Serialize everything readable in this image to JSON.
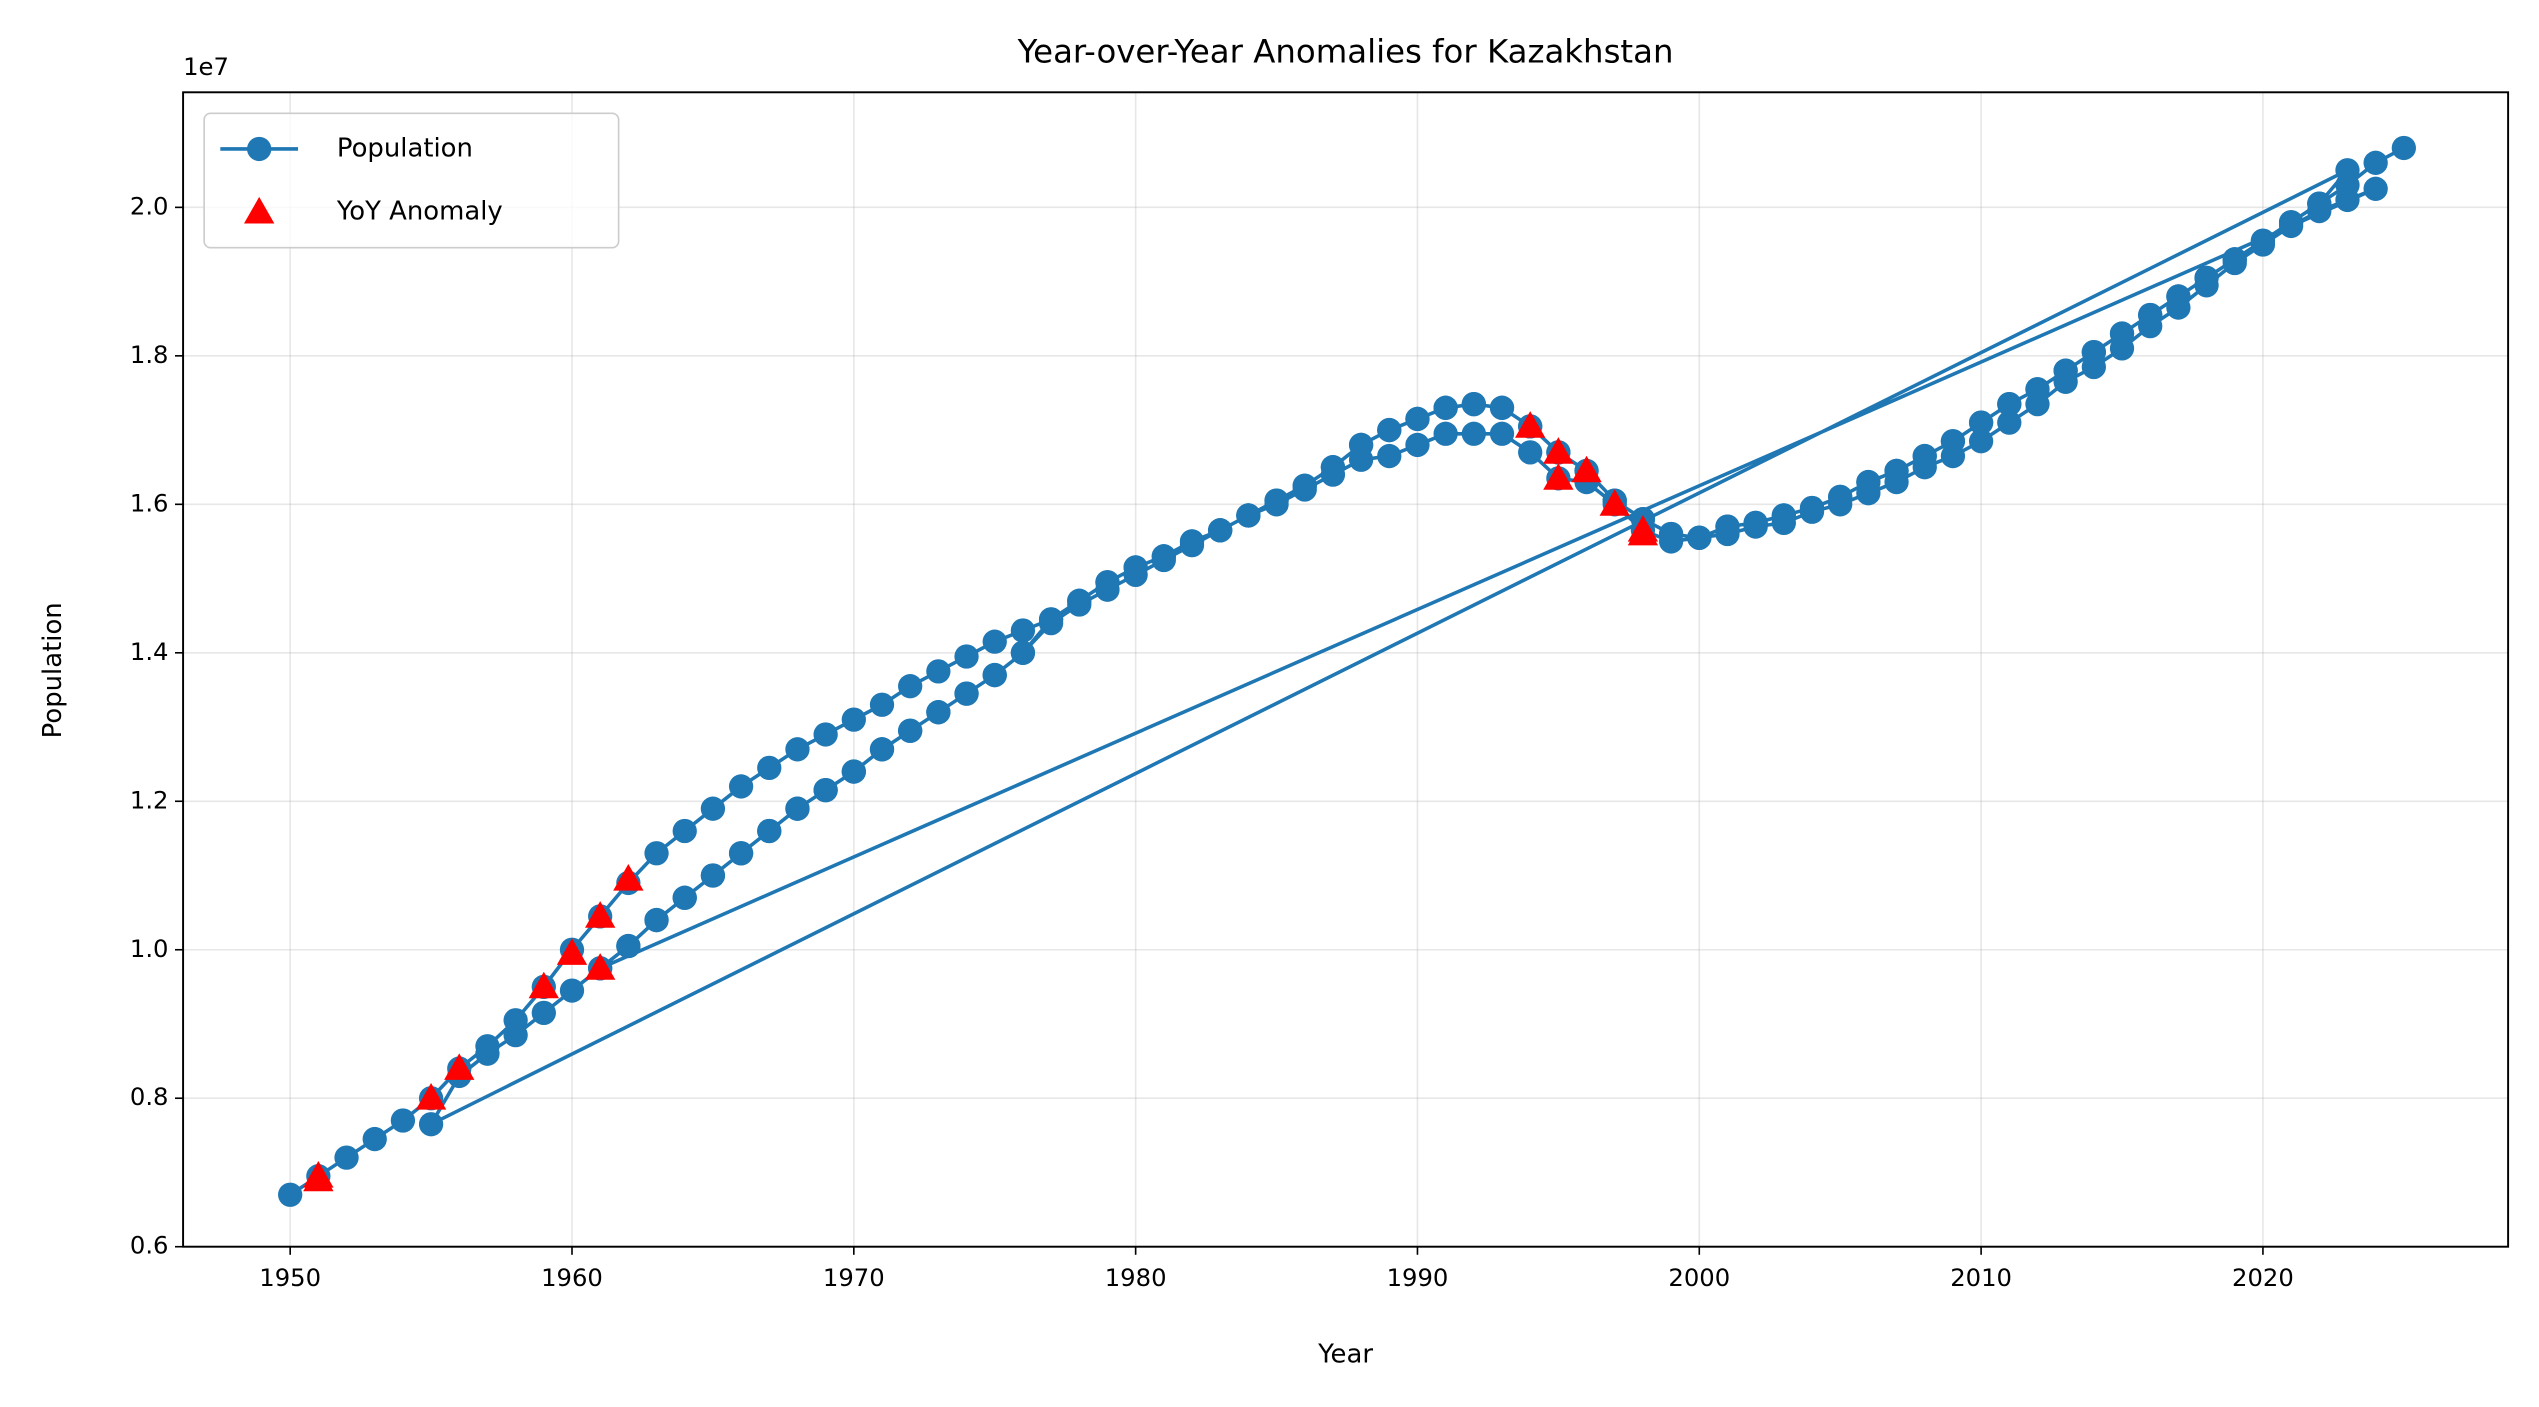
{
  "chart_data": {
    "type": "line",
    "title": "Year-over-Year Anomalies for Kazakhstan",
    "x_label": "Year",
    "y_label": "Population",
    "y_offset_label": "1e7",
    "xlim": [
      1946.2,
      2028.7
    ],
    "xticks": [
      1950,
      1960,
      1970,
      1980,
      1990,
      2000,
      2010,
      2020
    ],
    "ylim": [
      6000000,
      21550000
    ],
    "yticks": [
      {
        "value": 6000000,
        "label": "0.6"
      },
      {
        "value": 8000000,
        "label": "0.8"
      },
      {
        "value": 10000000,
        "label": "1.0"
      },
      {
        "value": 12000000,
        "label": "1.2"
      },
      {
        "value": 14000000,
        "label": "1.4"
      },
      {
        "value": 16000000,
        "label": "1.6"
      },
      {
        "value": 18000000,
        "label": "1.8"
      },
      {
        "value": 20000000,
        "label": "2.0"
      }
    ],
    "grid": true,
    "legend": "upper-left",
    "series": [
      {
        "name": "Population",
        "color": "#1f77b4",
        "marker": "circle",
        "x": [
          1950,
          1951,
          1952,
          1953,
          1954,
          1955,
          1956,
          1957,
          1958,
          1959,
          1960,
          1961,
          1962,
          1963,
          1964,
          1965,
          1966,
          1967,
          1968,
          1969,
          1970,
          1971,
          1972,
          1973,
          1974,
          1975,
          1976,
          1977,
          1978,
          1979,
          1980,
          1981,
          1982,
          1983,
          1984,
          1985,
          1986,
          1987,
          1988,
          1989,
          1990,
          1991,
          1992,
          1993,
          1994,
          1995,
          1996,
          1997,
          1998,
          1999,
          2000,
          2001,
          2002,
          2003,
          2004,
          2005,
          2006,
          2007,
          2008,
          2009,
          2010,
          2011,
          2012,
          2013,
          2014,
          2015,
          2016,
          2017,
          2018,
          2019,
          2020,
          2021,
          2022,
          2023,
          1955,
          1956,
          1957,
          1958,
          1959,
          1960,
          1961,
          1962,
          1963,
          1964,
          1965,
          1966,
          1967,
          1968,
          1969,
          1970,
          1971,
          1972,
          1973,
          1974,
          1975,
          1976,
          1977,
          1978,
          1979,
          1980,
          1981,
          1982,
          1983,
          1984,
          1985,
          1986,
          1987,
          1988,
          1989,
          1990,
          1991,
          1992,
          1993,
          1994,
          1995,
          1996,
          1997,
          1998,
          1999,
          2000,
          2001,
          2002,
          2003,
          2004,
          2005,
          2006,
          2007,
          2008,
          2009,
          2010,
          2011,
          2012,
          2013,
          2014,
          2015,
          2016,
          2017,
          2018,
          2019,
          2020,
          2021,
          2022,
          2023,
          2024,
          1961,
          1962,
          1963,
          1964,
          1965,
          1966,
          1967,
          1968,
          1969,
          1970,
          1971,
          1972,
          1973,
          1974,
          1975,
          1976,
          1977,
          1978,
          1979,
          1980,
          1981,
          1982,
          1983,
          1984,
          1985,
          1986,
          1987,
          1988,
          1989,
          1990,
          1991,
          1992,
          1993,
          1994,
          1995,
          1996,
          1997,
          1998,
          1999,
          2000,
          2001,
          2002,
          2003,
          2004,
          2005,
          2006,
          2007,
          2008,
          2009,
          2010,
          2011,
          2012,
          2013,
          2014,
          2015,
          2016,
          2017,
          2018,
          2019,
          2020,
          2021,
          2022,
          2023,
          2024,
          2025
        ],
        "values": [
          6700000.0,
          6950000.0,
          7200000.0,
          7450000.0,
          7700000.0,
          8000000.0,
          8400000.0,
          8700000.0,
          9050000.0,
          9500000.0,
          10000000.0,
          10450000.0,
          10900000.0,
          11300000.0,
          11600000.0,
          11900000.0,
          12200000.0,
          12450000.0,
          12700000.0,
          12900000.0,
          13100000.0,
          13300000.0,
          13550000.0,
          13750000.0,
          13950000.0,
          14150000.0,
          14300000.0,
          14450000.0,
          14700000.0,
          14950000.0,
          15150000.0,
          15300000.0,
          15500000.0,
          15650000.0,
          15850000.0,
          16050000.0,
          16250000.0,
          16500000.0,
          16800000.0,
          17000000.0,
          17150000.0,
          17300000.0,
          17350000.0,
          17300000.0,
          17050000.0,
          16700000.0,
          16450000.0,
          16050000.0,
          15800000.0,
          15600000.0,
          15550000.0,
          15700000.0,
          15750000.0,
          15850000.0,
          15950000.0,
          16100000.0,
          16300000.0,
          16450000.0,
          16650000.0,
          16850000.0,
          17100000.0,
          17350000.0,
          17550000.0,
          17800000.0,
          18050000.0,
          18300000.0,
          18550000.0,
          18800000.0,
          19050000.0,
          19300000.0,
          19550000.0,
          19800000.0,
          20050000.0,
          20500000.0,
          7650000.0,
          8300000.0,
          8600000.0,
          8850000.0,
          9150000.0,
          9450000.0,
          9750000.0,
          10050000.0,
          10400000.0,
          10700000.0,
          11000000.0,
          11300000.0,
          11600000.0,
          11900000.0,
          12150000.0,
          12400000.0,
          12700000.0,
          12950000.0,
          13200000.0,
          13450000.0,
          13700000.0,
          14000000.0,
          14400000.0,
          14650000.0,
          14850000.0,
          15050000.0,
          15250000.0,
          15450000.0,
          15650000.0,
          15850000.0,
          16000000.0,
          16200000.0,
          16400000.0,
          16600000.0,
          16650000.0,
          16800000.0,
          16950000.0,
          16950000.0,
          16950000.0,
          16700000.0,
          16350000.0,
          16300000.0,
          16000000.0,
          15650000.0,
          15500000.0,
          15550000.0,
          15600000.0,
          15700000.0,
          15750000.0,
          15900000.0,
          16000000.0,
          16150000.0,
          16300000.0,
          16500000.0,
          16650000.0,
          16850000.0,
          17100000.0,
          17350000.0,
          17650000.0,
          17850000.0,
          18100000.0,
          18400000.0,
          18650000.0,
          18950000.0,
          19250000.0,
          19500000.0,
          19750000.0,
          19950000.0,
          20100000.0,
          20250000.0,
          9750000.0,
          10050000.0,
          10400000.0,
          10700000.0,
          11000000.0,
          11300000.0,
          11600000.0,
          11900000.0,
          12150000.0,
          12400000.0,
          12700000.0,
          12950000.0,
          13200000.0,
          13450000.0,
          13700000.0,
          14000000.0,
          14450000.0,
          14700000.0,
          14950000.0,
          15150000.0,
          15300000.0,
          15500000.0,
          15650000.0,
          15850000.0,
          16050000.0,
          16250000.0,
          16500000.0,
          16800000.0,
          17000000.0,
          17150000.0,
          17300000.0,
          17350000.0,
          17300000.0,
          17050000.0,
          16700000.0,
          16450000.0,
          16050000.0,
          15800000.0,
          15600000.0,
          15550000.0,
          15700000.0,
          15750000.0,
          15850000.0,
          15950000.0,
          16100000.0,
          16300000.0,
          16450000.0,
          16650000.0,
          16850000.0,
          17100000.0,
          17350000.0,
          17550000.0,
          17800000.0,
          18050000.0,
          18300000.0,
          18550000.0,
          18800000.0,
          19050000.0,
          19300000.0,
          19550000.0,
          19800000.0,
          20050000.0,
          20300000.0,
          20600000.0,
          20800000.0
        ]
      },
      {
        "name": "YoY Anomaly",
        "color": "#ff0000",
        "marker": "triangle",
        "x": [
          1951,
          1951,
          1955,
          1956,
          1959,
          1960,
          1961,
          1961,
          1962,
          1994,
          1995,
          1995,
          1996,
          1997,
          1998,
          1998
        ],
        "values": [
          6950000.0,
          6900000.0,
          8000000.0,
          8400000.0,
          9500000.0,
          9950000.0,
          10450000.0,
          9750000.0,
          10950000.0,
          17050000.0,
          16700000.0,
          16350000.0,
          16450000.0,
          16000000.0,
          15650000.0,
          15600000.0
        ]
      }
    ]
  }
}
